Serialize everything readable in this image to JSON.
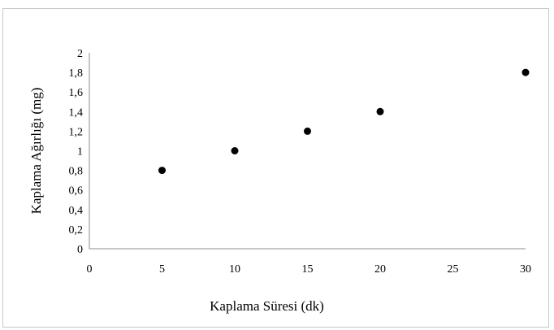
{
  "chart_data": {
    "type": "scatter",
    "title": "",
    "xlabel": "Kaplama Süresi (dk)",
    "ylabel": "Kaplama Ağırlığı (mg)",
    "xlim": [
      0,
      30
    ],
    "ylim": [
      0,
      2
    ],
    "x_ticks": [
      "0",
      "5",
      "10",
      "15",
      "20",
      "25",
      "30"
    ],
    "y_ticks": [
      "0",
      "0,2",
      "0,4",
      "0,6",
      "0,8",
      "1",
      "1,2",
      "1,4",
      "1,6",
      "1,8",
      "2"
    ],
    "grid": false,
    "legend": "none",
    "marker_color": "#000000",
    "points": [
      {
        "x": 5,
        "y": 0.8
      },
      {
        "x": 10,
        "y": 1.0
      },
      {
        "x": 15,
        "y": 1.2
      },
      {
        "x": 20,
        "y": 1.4
      },
      {
        "x": 30,
        "y": 1.8
      }
    ]
  }
}
